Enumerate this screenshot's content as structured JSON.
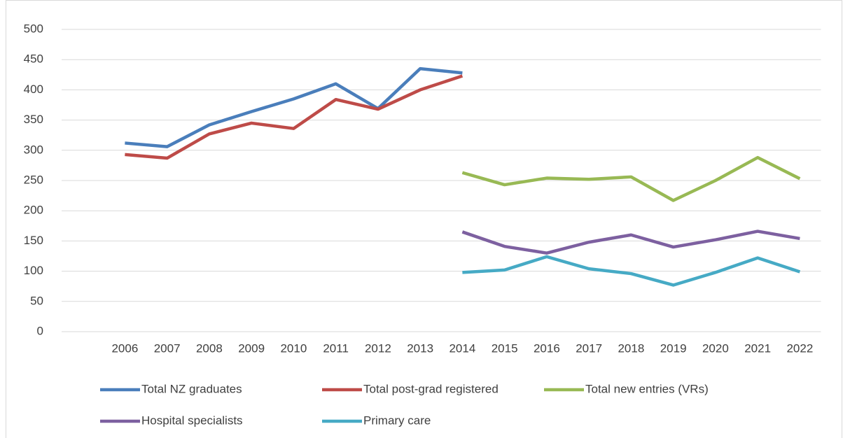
{
  "chart_data": {
    "type": "line",
    "categories": [
      null,
      "2006",
      "2007",
      "2008",
      "2009",
      "2010",
      "2011",
      "2012",
      "2013",
      "2014",
      "2015",
      "2016",
      "2017",
      "2018",
      "2019",
      "2020",
      "2021",
      "2022"
    ],
    "series": [
      {
        "name": "Total NZ graduates",
        "color": "#4a7ebb",
        "values": [
          null,
          312,
          306,
          342,
          364,
          385,
          410,
          369,
          435,
          428,
          null,
          null,
          null,
          null,
          null,
          null,
          null,
          null
        ]
      },
      {
        "name": "Total post-grad registered",
        "color": "#be4b48",
        "values": [
          null,
          293,
          287,
          327,
          345,
          336,
          384,
          368,
          400,
          423,
          null,
          null,
          null,
          null,
          null,
          null,
          null,
          null
        ]
      },
      {
        "name": "Total new entries (VRs)",
        "color": "#98b954",
        "values": [
          null,
          null,
          null,
          null,
          null,
          null,
          null,
          null,
          null,
          263,
          243,
          254,
          252,
          256,
          217,
          250,
          288,
          253
        ]
      },
      {
        "name": "Hospital specialists",
        "color": "#7d60a0",
        "values": [
          null,
          null,
          null,
          null,
          null,
          null,
          null,
          null,
          null,
          165,
          141,
          130,
          148,
          160,
          140,
          152,
          166,
          154
        ]
      },
      {
        "name": "Primary care",
        "color": "#46aac5",
        "values": [
          null,
          null,
          null,
          null,
          null,
          null,
          null,
          null,
          null,
          98,
          102,
          124,
          104,
          96,
          77,
          98,
          122,
          99
        ]
      }
    ],
    "ylim": [
      0,
      500
    ],
    "yticks": [
      0,
      50,
      100,
      150,
      200,
      250,
      300,
      350,
      400,
      450,
      500
    ],
    "grid": true,
    "legend": "bottom"
  }
}
